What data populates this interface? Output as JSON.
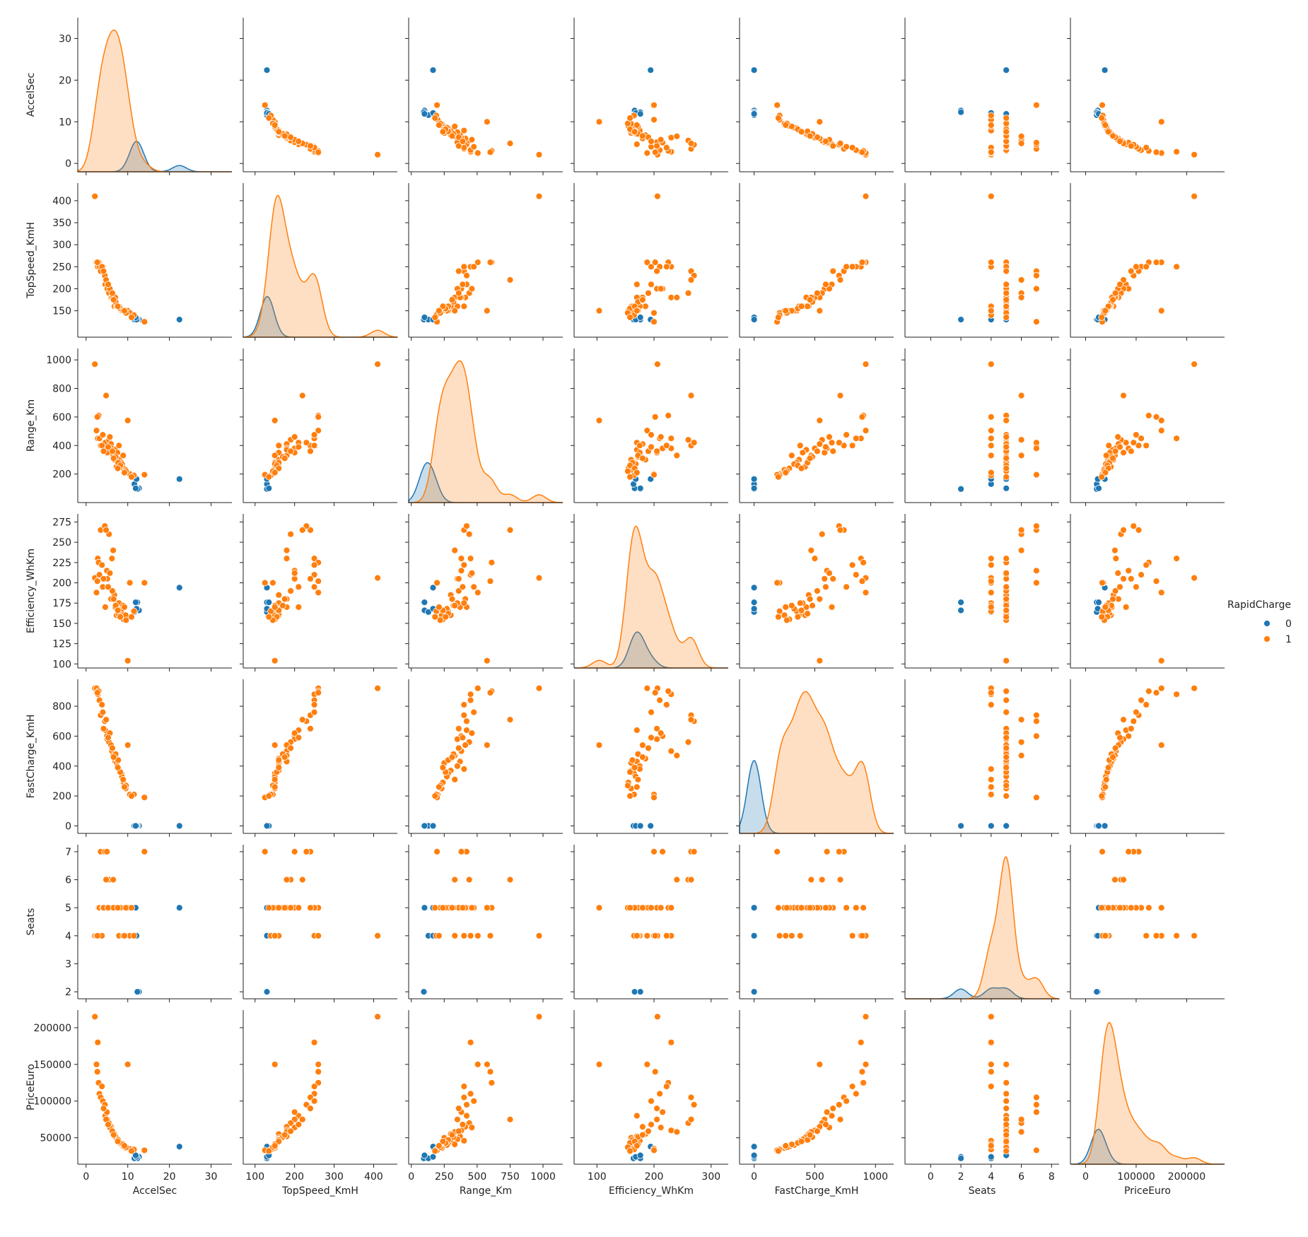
{
  "chart_data": {
    "type": "scatter",
    "subtype": "pairplot",
    "hue": "RapidCharge",
    "variables": [
      {
        "name": "AccelSec",
        "lim": [
          -2,
          35
        ],
        "ticks": [
          0,
          10,
          20,
          30
        ]
      },
      {
        "name": "TopSpeed_KmH",
        "lim": [
          90,
          440
        ],
        "ticks": [
          150,
          200,
          250,
          300,
          350,
          400
        ]
      },
      {
        "name": "Range_Km",
        "lim": [
          0,
          1080
        ],
        "ticks": [
          200,
          400,
          600,
          800,
          1000
        ]
      },
      {
        "name": "Efficiency_WhKm",
        "lim": [
          95,
          285
        ],
        "ticks": [
          100,
          125,
          150,
          175,
          200,
          225,
          250,
          275
        ]
      },
      {
        "name": "FastCharge_KmH",
        "lim": [
          -50,
          980
        ],
        "ticks": [
          0,
          200,
          400,
          600,
          800
        ]
      },
      {
        "name": "Seats",
        "lim": [
          1.75,
          7.25
        ],
        "ticks": [
          2,
          3,
          4,
          5,
          6,
          7
        ]
      },
      {
        "name": "PriceEuro",
        "lim": [
          14000,
          224000
        ],
        "ticks": [
          50000,
          100000,
          150000,
          200000
        ]
      }
    ],
    "x_axes": [
      {
        "label": "AccelSec",
        "lim": [
          -2,
          35
        ],
        "ticks": [
          0,
          10,
          20,
          30
        ]
      },
      {
        "label": "TopSpeed_KmH",
        "lim": [
          70,
          460
        ],
        "ticks": [
          100,
          200,
          300,
          400
        ]
      },
      {
        "label": "Range_Km",
        "lim": [
          -20,
          1150
        ],
        "ticks": [
          0,
          250,
          500,
          750,
          1000
        ]
      },
      {
        "label": "Efficiency_WhKm",
        "lim": [
          60,
          330
        ],
        "ticks": [
          100,
          200,
          300
        ]
      },
      {
        "label": "FastCharge_KmH",
        "lim": [
          -120,
          1150
        ],
        "ticks": [
          0,
          500,
          1000
        ]
      },
      {
        "label": "Seats",
        "lim": [
          -1.7,
          8.5
        ],
        "ticks": [
          0,
          2,
          4,
          6,
          8
        ]
      },
      {
        "label": "PriceEuro",
        "lim": [
          -30000,
          275000
        ],
        "ticks": [
          0,
          100000,
          200000
        ]
      }
    ],
    "series": [
      {
        "name": "0",
        "color": "#1f77b4",
        "points": [
          [
            12.7,
            130,
            100,
            166,
            0,
            2,
            24000
          ],
          [
            12.3,
            130,
            95,
            176,
            0,
            2,
            22000
          ],
          [
            11.6,
            130,
            130,
            164,
            0,
            4,
            22000
          ],
          [
            12.1,
            130,
            165,
            168,
            0,
            4,
            24000
          ],
          [
            11.9,
            135,
            100,
            176,
            0,
            5,
            26000
          ],
          [
            22.4,
            130,
            165,
            194,
            0,
            5,
            38000
          ]
        ]
      },
      {
        "name": "1",
        "color": "#ff7f0e",
        "points": [
          [
            2.1,
            410,
            970,
            206,
            920,
            4,
            215000
          ],
          [
            2.5,
            260,
            505,
            188,
            920,
            4,
            150000
          ],
          [
            2.8,
            250,
            450,
            230,
            880,
            4,
            180000
          ],
          [
            3.0,
            260,
            610,
            225,
            900,
            5,
            125000
          ],
          [
            3.2,
            250,
            450,
            210,
            840,
            5,
            110000
          ],
          [
            3.5,
            240,
            400,
            265,
            740,
            7,
            105000
          ],
          [
            4.0,
            250,
            475,
            195,
            760,
            5,
            100000
          ],
          [
            4.5,
            230,
            420,
            270,
            700,
            7,
            95000
          ],
          [
            4.6,
            210,
            420,
            170,
            640,
            5,
            80000
          ],
          [
            5.0,
            200,
            380,
            215,
            600,
            7,
            85000
          ],
          [
            5.1,
            200,
            350,
            205,
            580,
            5,
            75000
          ],
          [
            5.5,
            190,
            440,
            260,
            560,
            6,
            70000
          ],
          [
            6.0,
            180,
            410,
            180,
            540,
            5,
            65000
          ],
          [
            6.2,
            180,
            380,
            230,
            500,
            5,
            60000
          ],
          [
            6.5,
            180,
            330,
            240,
            470,
            6,
            58000
          ],
          [
            6.8,
            160,
            300,
            185,
            450,
            5,
            55000
          ],
          [
            7.0,
            180,
            370,
            170,
            430,
            5,
            52000
          ],
          [
            7.3,
            160,
            250,
            160,
            420,
            5,
            50000
          ],
          [
            7.5,
            160,
            350,
            175,
            400,
            5,
            48000
          ],
          [
            7.9,
            160,
            400,
            175,
            380,
            4,
            46000
          ],
          [
            8.0,
            160,
            300,
            160,
            370,
            5,
            44000
          ],
          [
            8.5,
            150,
            280,
            165,
            350,
            5,
            42000
          ],
          [
            8.6,
            150,
            270,
            168,
            330,
            5,
            40000
          ],
          [
            9.0,
            150,
            240,
            155,
            290,
            5,
            38000
          ],
          [
            9.5,
            150,
            230,
            160,
            250,
            5,
            36000
          ],
          [
            10.0,
            150,
            575,
            104,
            540,
            5,
            150000
          ],
          [
            10.5,
            145,
            200,
            200,
            210,
            4,
            35000
          ],
          [
            11.5,
            140,
            190,
            165,
            210,
            4,
            34000
          ],
          [
            14.0,
            125,
            195,
            200,
            190,
            7,
            33000
          ],
          [
            3.8,
            250,
            400,
            222,
            810,
            4,
            120000
          ],
          [
            4.2,
            240,
            360,
            205,
            650,
            5,
            90000
          ],
          [
            5.7,
            200,
            460,
            212,
            620,
            5,
            64000
          ],
          [
            6.3,
            190,
            360,
            190,
            520,
            5,
            59000
          ],
          [
            7.1,
            170,
            320,
            172,
            480,
            5,
            51000
          ],
          [
            7.7,
            160,
            280,
            162,
            440,
            5,
            47000
          ],
          [
            8.2,
            155,
            260,
            158,
            360,
            5,
            43000
          ],
          [
            8.9,
            150,
            330,
            172,
            310,
            4,
            41000
          ],
          [
            9.6,
            145,
            220,
            154,
            270,
            5,
            37000
          ],
          [
            2.7,
            260,
            600,
            202,
            890,
            4,
            140000
          ],
          [
            4.8,
            220,
            750,
            265,
            710,
            6,
            75000
          ],
          [
            5.3,
            210,
            390,
            195,
            590,
            5,
            68000
          ],
          [
            6.6,
            175,
            310,
            180,
            460,
            5,
            54000
          ],
          [
            7.6,
            160,
            240,
            166,
            390,
            5,
            45000
          ],
          [
            9.2,
            150,
            210,
            170,
            260,
            4,
            39000
          ],
          [
            10.9,
            135,
            180,
            158,
            200,
            5,
            32000
          ]
        ]
      }
    ],
    "legend": {
      "title": "RapidCharge",
      "entries": [
        "0",
        "1"
      ],
      "placement": "right"
    },
    "grid": false
  }
}
